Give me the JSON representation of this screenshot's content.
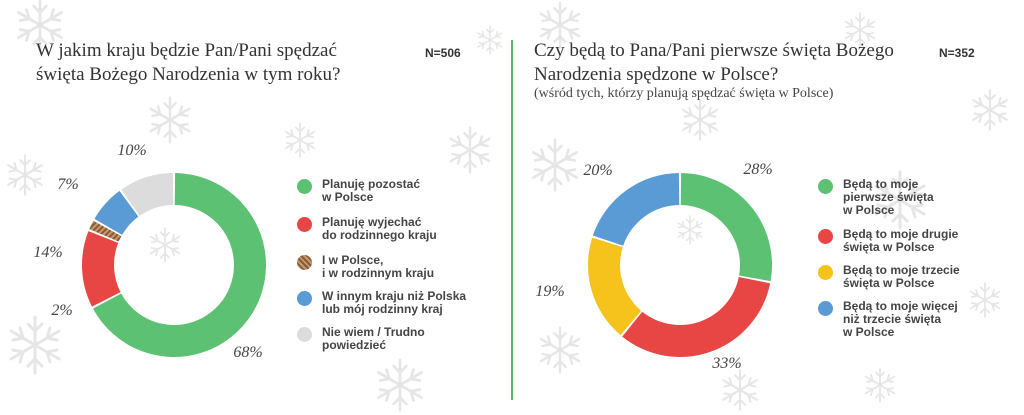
{
  "colors": {
    "green": "#5cc172",
    "red": "#e84545",
    "brown": "#a5704a",
    "blue": "#5b9bd5",
    "gray": "#dcdcdc",
    "yellow": "#f6c21c",
    "divider": "#5bb86a"
  },
  "chart_data": [
    {
      "type": "pie",
      "variant": "donut",
      "title_lines": [
        "W jakim kraju będzie Pan/Pani spędzać",
        "święta Bożego Narodzenia w tym roku?"
      ],
      "n_label": "N=506",
      "slices": [
        {
          "legend_lines": [
            "Planuję pozostać",
            "w Polsce"
          ],
          "value": 68,
          "label": "68%",
          "color": "#5cc172",
          "marker_icon": "green-dot-icon",
          "name": "slice-planuje-pozostac"
        },
        {
          "legend_lines": [
            "Planuję wyjechać",
            "do rodzinnego kraju"
          ],
          "value": 14,
          "label": "14%",
          "color": "#e84545",
          "marker_icon": "red-dot-icon",
          "name": "slice-planuje-wyjechac"
        },
        {
          "legend_lines": [
            "I w Polsce,",
            "i w rodzinnym kraju"
          ],
          "value": 2,
          "label": "2%",
          "color": "#a5704a",
          "marker_icon": "striped-dot-icon",
          "name": "slice-w-polsce-i-rodzinnym",
          "striped": true
        },
        {
          "legend_lines": [
            "W innym kraju niż Polska",
            "lub mój rodzinny kraj"
          ],
          "value": 7,
          "label": "7%",
          "color": "#5b9bd5",
          "marker_icon": "blue-dot-icon",
          "name": "slice-innym-kraju"
        },
        {
          "legend_lines": [
            "Nie wiem / Trudno",
            "powiedzieć"
          ],
          "value": 10,
          "label": "10%",
          "color": "#dcdcdc",
          "marker_icon": "gray-dot-icon",
          "name": "slice-nie-wiem"
        }
      ]
    },
    {
      "type": "pie",
      "variant": "donut",
      "title_lines": [
        "Czy będą to Pana/Pani pierwsze święta Bożego",
        "Narodzenia spędzone w Polsce?"
      ],
      "subtitle": "(wśród tych, którzy planują spędzać święta w Polsce)",
      "n_label": "N=352",
      "slices": [
        {
          "legend_lines": [
            "Będą to moje",
            "pierwsze święta",
            "w Polsce"
          ],
          "value": 28,
          "label": "28%",
          "color": "#5cc172",
          "marker_icon": "green-dot-icon",
          "name": "slice-pierwsze"
        },
        {
          "legend_lines": [
            "Będą to moje drugie",
            "święta w Polsce"
          ],
          "value": 33,
          "label": "33%",
          "color": "#e84545",
          "marker_icon": "red-dot-icon",
          "name": "slice-drugie"
        },
        {
          "legend_lines": [
            "Będą to moje trzecie",
            "święta w Polsce"
          ],
          "value": 19,
          "label": "19%",
          "color": "#f6c21c",
          "marker_icon": "yellow-dot-icon",
          "name": "slice-trzecie"
        },
        {
          "legend_lines": [
            "Będą to moje więcej",
            "niż trzecie święta",
            "w Polsce"
          ],
          "value": 20,
          "label": "20%",
          "color": "#5b9bd5",
          "marker_icon": "blue-dot-icon",
          "name": "slice-wiecej"
        }
      ]
    }
  ]
}
